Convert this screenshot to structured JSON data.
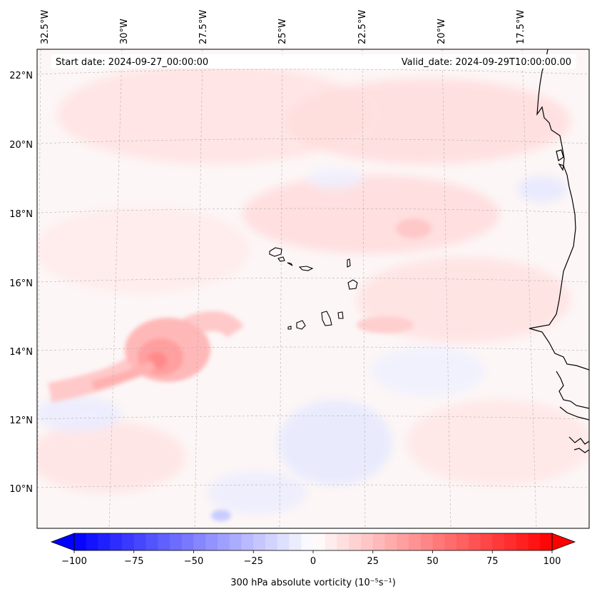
{
  "map": {
    "start_date": "Start date: 2024-09-27_00:00:00",
    "valid_date": "Valid_date: 2024-09-29T10:00:00.00",
    "lon_labels": [
      "32.5°W",
      "30°W",
      "27.5°W",
      "25°W",
      "22.5°W",
      "20°W",
      "17.5°W"
    ],
    "lat_labels": [
      "22°N",
      "20°N",
      "18°N",
      "16°N",
      "14°N",
      "12°N",
      "10°N"
    ],
    "colors": {
      "positive": "#ff0000",
      "negative": "#0000ff",
      "coastline": "#000000",
      "gridline": "#b0b0b0"
    }
  },
  "colorbar": {
    "label": "300 hPa absolute vorticity (10⁻⁵s⁻¹)",
    "min": -100,
    "max": 100,
    "ticks": [
      {
        "value": -100,
        "label": "−100"
      },
      {
        "value": -75,
        "label": "−75"
      },
      {
        "value": -50,
        "label": "−50"
      },
      {
        "value": -25,
        "label": "−25"
      },
      {
        "value": 0,
        "label": "0"
      },
      {
        "value": 25,
        "label": "25"
      },
      {
        "value": 50,
        "label": "50"
      },
      {
        "value": 75,
        "label": "75"
      },
      {
        "value": 100,
        "label": "100"
      }
    ]
  }
}
